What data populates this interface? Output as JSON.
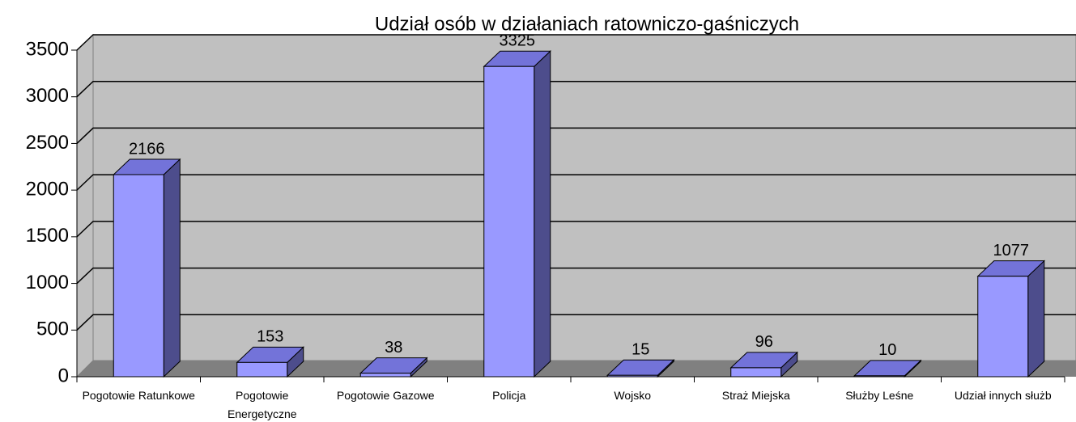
{
  "chart_data": {
    "type": "bar",
    "title": "Udział osób w działaniach ratowniczo-gaśniczych",
    "categories": [
      "Pogotowie Ratunkowe",
      "Pogotowie Energetyczne",
      "Pogotowie Gazowe",
      "Policja",
      "Wojsko",
      "Straż Miejska",
      "Służby Leśne",
      "Udział innych służb"
    ],
    "values": [
      2166,
      153,
      38,
      3325,
      15,
      96,
      10,
      1077
    ],
    "color": "#9999ff",
    "ylim": [
      0,
      3500
    ],
    "yticks": [
      0,
      500,
      1000,
      1500,
      2000,
      2500,
      3000,
      3500
    ],
    "grid": true
  }
}
